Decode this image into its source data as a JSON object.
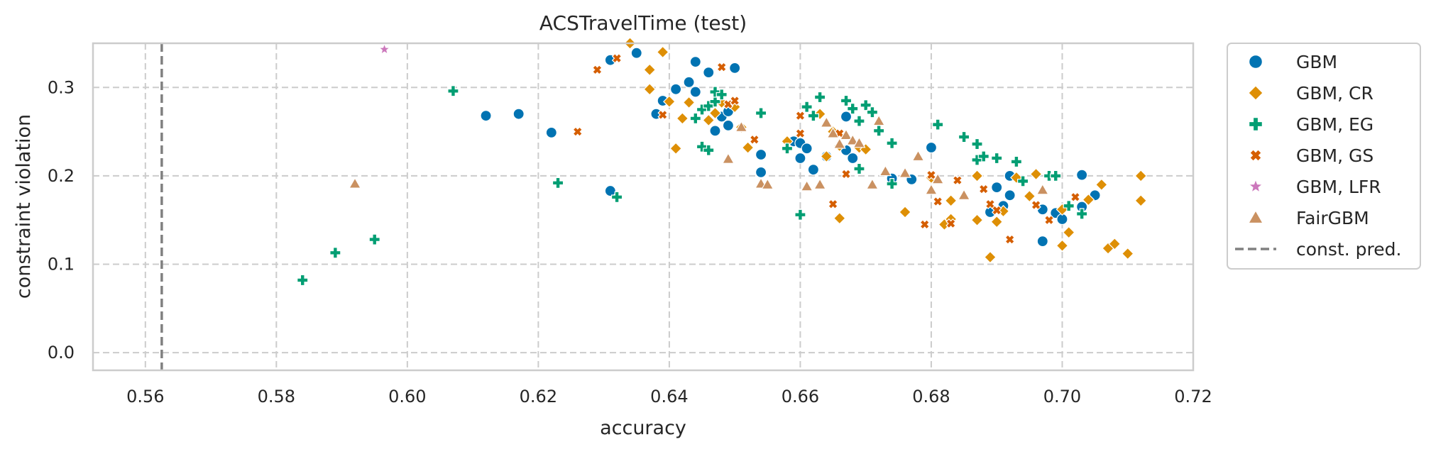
{
  "chart_data": {
    "type": "scatter",
    "title": "ACSTravelTime (test)",
    "xlabel": "accuracy",
    "ylabel": "constraint violation",
    "xlim": [
      0.552,
      0.72
    ],
    "ylim": [
      -0.02,
      0.35
    ],
    "xticks": [
      0.56,
      0.58,
      0.6,
      0.62,
      0.64,
      0.66,
      0.68,
      0.7,
      0.72
    ],
    "yticks": [
      0.0,
      0.1,
      0.2,
      0.3
    ],
    "xtick_labels": [
      "0.56",
      "0.58",
      "0.60",
      "0.62",
      "0.64",
      "0.66",
      "0.68",
      "0.70",
      "0.72"
    ],
    "ytick_labels": [
      "0.0",
      "0.1",
      "0.2",
      "0.3"
    ],
    "grid": true,
    "legend_position": "outside-right",
    "baseline": {
      "name": "const. pred.",
      "x": 0.5625,
      "color": "#808080",
      "style": "dashed"
    },
    "series": [
      {
        "name": "GBM",
        "marker": "circle",
        "color": "#0173b2",
        "points": [
          [
            0.612,
            0.268
          ],
          [
            0.617,
            0.27
          ],
          [
            0.622,
            0.249
          ],
          [
            0.631,
            0.183
          ],
          [
            0.631,
            0.331
          ],
          [
            0.635,
            0.339
          ],
          [
            0.638,
            0.27
          ],
          [
            0.639,
            0.285
          ],
          [
            0.641,
            0.298
          ],
          [
            0.643,
            0.306
          ],
          [
            0.644,
            0.295
          ],
          [
            0.644,
            0.329
          ],
          [
            0.646,
            0.317
          ],
          [
            0.647,
            0.251
          ],
          [
            0.648,
            0.267
          ],
          [
            0.649,
            0.273
          ],
          [
            0.649,
            0.257
          ],
          [
            0.65,
            0.322
          ],
          [
            0.654,
            0.224
          ],
          [
            0.654,
            0.204
          ],
          [
            0.659,
            0.239
          ],
          [
            0.66,
            0.22
          ],
          [
            0.66,
            0.237
          ],
          [
            0.661,
            0.231
          ],
          [
            0.662,
            0.207
          ],
          [
            0.664,
            0.222
          ],
          [
            0.667,
            0.229
          ],
          [
            0.667,
            0.267
          ],
          [
            0.668,
            0.22
          ],
          [
            0.674,
            0.197
          ],
          [
            0.677,
            0.196
          ],
          [
            0.68,
            0.232
          ],
          [
            0.689,
            0.159
          ],
          [
            0.69,
            0.187
          ],
          [
            0.691,
            0.166
          ],
          [
            0.692,
            0.178
          ],
          [
            0.692,
            0.2
          ],
          [
            0.697,
            0.162
          ],
          [
            0.697,
            0.126
          ],
          [
            0.699,
            0.158
          ],
          [
            0.7,
            0.151
          ],
          [
            0.703,
            0.201
          ],
          [
            0.703,
            0.165
          ],
          [
            0.705,
            0.178
          ]
        ]
      },
      {
        "name": "GBM, CR",
        "marker": "diamond",
        "color": "#de8f05",
        "points": [
          [
            0.634,
            0.35
          ],
          [
            0.637,
            0.32
          ],
          [
            0.637,
            0.298
          ],
          [
            0.639,
            0.34
          ],
          [
            0.64,
            0.284
          ],
          [
            0.641,
            0.231
          ],
          [
            0.642,
            0.265
          ],
          [
            0.643,
            0.283
          ],
          [
            0.646,
            0.263
          ],
          [
            0.647,
            0.271
          ],
          [
            0.648,
            0.283
          ],
          [
            0.65,
            0.278
          ],
          [
            0.651,
            0.255
          ],
          [
            0.652,
            0.232
          ],
          [
            0.658,
            0.239
          ],
          [
            0.663,
            0.27
          ],
          [
            0.664,
            0.222
          ],
          [
            0.665,
            0.25
          ],
          [
            0.666,
            0.152
          ],
          [
            0.666,
            0.234
          ],
          [
            0.669,
            0.232
          ],
          [
            0.67,
            0.23
          ],
          [
            0.676,
            0.159
          ],
          [
            0.68,
            0.198
          ],
          [
            0.682,
            0.145
          ],
          [
            0.683,
            0.172
          ],
          [
            0.683,
            0.151
          ],
          [
            0.687,
            0.15
          ],
          [
            0.687,
            0.2
          ],
          [
            0.689,
            0.108
          ],
          [
            0.69,
            0.148
          ],
          [
            0.691,
            0.16
          ],
          [
            0.693,
            0.198
          ],
          [
            0.695,
            0.177
          ],
          [
            0.696,
            0.202
          ],
          [
            0.7,
            0.121
          ],
          [
            0.7,
            0.162
          ],
          [
            0.701,
            0.136
          ],
          [
            0.704,
            0.173
          ],
          [
            0.706,
            0.19
          ],
          [
            0.707,
            0.118
          ],
          [
            0.708,
            0.123
          ],
          [
            0.71,
            0.112
          ],
          [
            0.712,
            0.172
          ],
          [
            0.712,
            0.2
          ]
        ]
      },
      {
        "name": "GBM, EG",
        "marker": "plus",
        "color": "#029e73",
        "points": [
          [
            0.584,
            0.082
          ],
          [
            0.589,
            0.113
          ],
          [
            0.595,
            0.128
          ],
          [
            0.607,
            0.296
          ],
          [
            0.623,
            0.192
          ],
          [
            0.632,
            0.176
          ],
          [
            0.644,
            0.265
          ],
          [
            0.645,
            0.275
          ],
          [
            0.645,
            0.233
          ],
          [
            0.646,
            0.279
          ],
          [
            0.646,
            0.229
          ],
          [
            0.647,
            0.284
          ],
          [
            0.647,
            0.295
          ],
          [
            0.648,
            0.292
          ],
          [
            0.654,
            0.271
          ],
          [
            0.658,
            0.231
          ],
          [
            0.66,
            0.156
          ],
          [
            0.661,
            0.278
          ],
          [
            0.662,
            0.268
          ],
          [
            0.663,
            0.289
          ],
          [
            0.667,
            0.285
          ],
          [
            0.668,
            0.276
          ],
          [
            0.669,
            0.262
          ],
          [
            0.669,
            0.208
          ],
          [
            0.67,
            0.28
          ],
          [
            0.671,
            0.272
          ],
          [
            0.672,
            0.251
          ],
          [
            0.674,
            0.237
          ],
          [
            0.674,
            0.191
          ],
          [
            0.681,
            0.258
          ],
          [
            0.685,
            0.244
          ],
          [
            0.687,
            0.236
          ],
          [
            0.687,
            0.218
          ],
          [
            0.688,
            0.222
          ],
          [
            0.69,
            0.22
          ],
          [
            0.693,
            0.216
          ],
          [
            0.694,
            0.194
          ],
          [
            0.698,
            0.2
          ],
          [
            0.699,
            0.2
          ],
          [
            0.701,
            0.166
          ],
          [
            0.703,
            0.157
          ]
        ]
      },
      {
        "name": "GBM, GS",
        "marker": "x",
        "color": "#d55e00",
        "points": [
          [
            0.626,
            0.25
          ],
          [
            0.629,
            0.32
          ],
          [
            0.632,
            0.333
          ],
          [
            0.639,
            0.269
          ],
          [
            0.648,
            0.323
          ],
          [
            0.649,
            0.281
          ],
          [
            0.65,
            0.285
          ],
          [
            0.653,
            0.241
          ],
          [
            0.66,
            0.268
          ],
          [
            0.66,
            0.248
          ],
          [
            0.665,
            0.168
          ],
          [
            0.666,
            0.248
          ],
          [
            0.667,
            0.202
          ],
          [
            0.679,
            0.145
          ],
          [
            0.68,
            0.201
          ],
          [
            0.681,
            0.171
          ],
          [
            0.683,
            0.146
          ],
          [
            0.684,
            0.195
          ],
          [
            0.688,
            0.185
          ],
          [
            0.689,
            0.168
          ],
          [
            0.69,
            0.161
          ],
          [
            0.692,
            0.128
          ],
          [
            0.696,
            0.167
          ],
          [
            0.698,
            0.15
          ],
          [
            0.702,
            0.176
          ]
        ]
      },
      {
        "name": "GBM, LFR",
        "marker": "star",
        "color": "#cc78bc",
        "points": [
          [
            0.5965,
            0.343
          ],
          [
            0.6005,
            0.351
          ]
        ]
      },
      {
        "name": "FairGBM",
        "marker": "triangle",
        "color": "#ca9161",
        "points": [
          [
            0.592,
            0.191
          ],
          [
            0.649,
            0.219
          ],
          [
            0.651,
            0.255
          ],
          [
            0.654,
            0.191
          ],
          [
            0.655,
            0.19
          ],
          [
            0.661,
            0.188
          ],
          [
            0.663,
            0.19
          ],
          [
            0.664,
            0.26
          ],
          [
            0.665,
            0.248
          ],
          [
            0.666,
            0.236
          ],
          [
            0.667,
            0.246
          ],
          [
            0.668,
            0.24
          ],
          [
            0.669,
            0.237
          ],
          [
            0.671,
            0.19
          ],
          [
            0.672,
            0.262
          ],
          [
            0.673,
            0.205
          ],
          [
            0.676,
            0.203
          ],
          [
            0.678,
            0.222
          ],
          [
            0.68,
            0.184
          ],
          [
            0.681,
            0.196
          ],
          [
            0.685,
            0.178
          ],
          [
            0.697,
            0.184
          ]
        ]
      }
    ]
  }
}
